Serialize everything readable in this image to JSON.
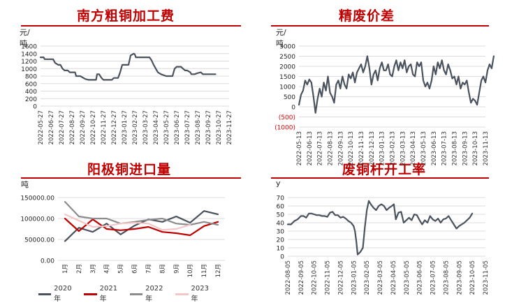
{
  "chart_data": [
    {
      "type": "line",
      "title": "南方粗铜加工费",
      "unit": "元/吨",
      "ylim": [
        0,
        1600
      ],
      "yticks": [
        "0",
        "200",
        "400",
        "600",
        "800",
        "1000",
        "1200",
        "1400",
        "1600"
      ],
      "xticks": [
        "2022-05-27",
        "2022-06-27",
        "2022-07-27",
        "2022-08-27",
        "2022-09-27",
        "2022-10-27",
        "2022-11-27",
        "2022-12-27",
        "2023-01-27",
        "2023-02-27",
        "2023-03-27",
        "2023-04-27",
        "2023-05-27",
        "2023-06-27",
        "2023-07-27",
        "2023-08-27",
        "2023-09-27",
        "2023-10-27",
        "2023-11-27"
      ],
      "grid": true,
      "color": "#4a525e",
      "series": [
        {
          "values": [
            [
              0,
              1300
            ],
            [
              0.3,
              1300
            ],
            [
              0.4,
              1250
            ],
            [
              1,
              1250
            ],
            [
              1.2,
              1250
            ],
            [
              1.4,
              1150
            ],
            [
              1.7,
              1100
            ],
            [
              1.9,
              1100
            ],
            [
              2.1,
              1000
            ],
            [
              2.3,
              950
            ],
            [
              2.6,
              950
            ],
            [
              2.8,
              900
            ],
            [
              3.3,
              900
            ],
            [
              3.4,
              800
            ],
            [
              3.8,
              800
            ],
            [
              4.1,
              750
            ],
            [
              4.3,
              720
            ],
            [
              4.6,
              700
            ],
            [
              5.3,
              700
            ],
            [
              5.4,
              850
            ],
            [
              5.6,
              850
            ],
            [
              5.8,
              760
            ],
            [
              6,
              700
            ],
            [
              6.8,
              700
            ],
            [
              7,
              750
            ],
            [
              7.4,
              750
            ],
            [
              7.6,
              900
            ],
            [
              7.8,
              1100
            ],
            [
              8.4,
              1100
            ],
            [
              8.6,
              1350
            ],
            [
              8.9,
              1400
            ],
            [
              9,
              1380
            ],
            [
              9.1,
              1300
            ],
            [
              10,
              1300
            ],
            [
              10.4,
              1300
            ],
            [
              10.6,
              1220
            ],
            [
              10.8,
              1100
            ],
            [
              11,
              1000
            ],
            [
              11.2,
              900
            ],
            [
              11.5,
              850
            ],
            [
              12,
              800
            ],
            [
              12.6,
              800
            ],
            [
              12.8,
              1000
            ],
            [
              13,
              1050
            ],
            [
              13.4,
              1050
            ],
            [
              13.6,
              1000
            ],
            [
              13.8,
              950
            ],
            [
              14,
              950
            ],
            [
              14.3,
              900
            ],
            [
              14.4,
              850
            ],
            [
              14.7,
              850
            ],
            [
              15,
              880
            ],
            [
              15.3,
              900
            ],
            [
              15.5,
              850
            ],
            [
              16,
              850
            ],
            [
              16.5,
              850
            ],
            [
              16.7,
              850
            ]
          ]
        }
      ]
    },
    {
      "type": "line",
      "title": "精废价差",
      "unit": "元/吨",
      "ylim": [
        -1000,
        3000
      ],
      "yticks": [
        "(1000)",
        "(500)",
        "0",
        "500",
        "1000",
        "1500",
        "2000",
        "2500",
        "3000"
      ],
      "negative_tick_color": "#e00000",
      "xticks": [
        "2022-05-13",
        "2022-06-13",
        "2022-07-13",
        "2022-08-13",
        "2022-09-13",
        "2022-10-13",
        "2022-11-13",
        "2022-12-13",
        "2023-01-13",
        "2023-02-13",
        "2023-03-13",
        "2023-04-13",
        "2023-05-13",
        "2023-06-13",
        "2023-07-13",
        "2023-08-13",
        "2023-09-13",
        "2023-10-13",
        "2023-11-13"
      ],
      "grid": true,
      "color": "#4a525e",
      "series": [
        {
          "values": [
            [
              0,
              100
            ],
            [
              0.2,
              600
            ],
            [
              0.4,
              800
            ],
            [
              0.6,
              1300
            ],
            [
              0.8,
              1100
            ],
            [
              1,
              1350
            ],
            [
              1.2,
              1200
            ],
            [
              1.4,
              500
            ],
            [
              1.6,
              -300
            ],
            [
              1.8,
              400
            ],
            [
              2,
              900
            ],
            [
              2.2,
              500
            ],
            [
              2.4,
              1200
            ],
            [
              2.6,
              800
            ],
            [
              2.8,
              1500
            ],
            [
              3,
              700
            ],
            [
              3.2,
              500
            ],
            [
              3.4,
              200
            ],
            [
              3.6,
              1100
            ],
            [
              3.8,
              1300
            ],
            [
              4,
              900
            ],
            [
              4.2,
              1500
            ],
            [
              4.4,
              1100
            ],
            [
              4.6,
              900
            ],
            [
              4.8,
              1600
            ],
            [
              5,
              1400
            ],
            [
              5.2,
              1700
            ],
            [
              5.4,
              1200
            ],
            [
              5.6,
              1700
            ],
            [
              5.8,
              1900
            ],
            [
              6,
              2100
            ],
            [
              6.2,
              1700
            ],
            [
              6.4,
              2000
            ],
            [
              6.6,
              2500
            ],
            [
              6.8,
              1900
            ],
            [
              7,
              1100
            ],
            [
              7.2,
              1600
            ],
            [
              7.4,
              1800
            ],
            [
              7.6,
              1300
            ],
            [
              7.8,
              1900
            ],
            [
              8,
              2200
            ],
            [
              8.2,
              1800
            ],
            [
              8.4,
              1800
            ],
            [
              8.6,
              2100
            ],
            [
              8.8,
              1600
            ],
            [
              9,
              1500
            ],
            [
              9.2,
              2000
            ],
            [
              9.4,
              2300
            ],
            [
              9.6,
              1800
            ],
            [
              9.8,
              2200
            ],
            [
              10,
              1900
            ],
            [
              10.2,
              2300
            ],
            [
              10.4,
              1700
            ],
            [
              10.6,
              2000
            ],
            [
              10.8,
              2100
            ],
            [
              11,
              1600
            ],
            [
              11.2,
              1500
            ],
            [
              11.4,
              2200
            ],
            [
              11.6,
              2000
            ],
            [
              11.8,
              2200
            ],
            [
              12,
              1300
            ],
            [
              12.2,
              1000
            ],
            [
              12.4,
              1200
            ],
            [
              12.6,
              900
            ],
            [
              12.8,
              1300
            ],
            [
              13,
              2000
            ],
            [
              13.2,
              1600
            ],
            [
              13.4,
              2200
            ],
            [
              13.6,
              1900
            ],
            [
              13.8,
              2300
            ],
            [
              14,
              1800
            ],
            [
              14.2,
              1600
            ],
            [
              14.4,
              2100
            ],
            [
              14.6,
              1800
            ],
            [
              14.8,
              1400
            ],
            [
              15,
              1500
            ],
            [
              15.2,
              1100
            ],
            [
              15.4,
              1500
            ],
            [
              15.6,
              900
            ],
            [
              15.8,
              1200
            ],
            [
              16,
              1100
            ],
            [
              16.2,
              1300
            ],
            [
              16.4,
              700
            ],
            [
              16.6,
              200
            ],
            [
              16.8,
              400
            ],
            [
              17,
              300
            ],
            [
              17.2,
              100
            ],
            [
              17.4,
              700
            ],
            [
              17.6,
              1300
            ],
            [
              17.8,
              1500
            ],
            [
              18,
              1200
            ],
            [
              18.2,
              1800
            ],
            [
              18.4,
              2100
            ],
            [
              18.6,
              1900
            ],
            [
              18.8,
              2500
            ]
          ]
        }
      ]
    },
    {
      "type": "line",
      "title": "阳极铜进口量",
      "unit": "吨",
      "ylim": [
        0,
        150000
      ],
      "yticks": [
        "0.00",
        "50000.00",
        "100000.00",
        "150000.00"
      ],
      "categories": [
        "1月",
        "2月",
        "3月",
        "4月",
        "5月",
        "6月",
        "7月",
        "8月",
        "9月",
        "10月",
        "11月",
        "12月"
      ],
      "grid": true,
      "legend_position": "bottom",
      "series": [
        {
          "name": "2020年",
          "color": "#4a525e",
          "values": [
            46000,
            78000,
            68000,
            88000,
            62000,
            83000,
            98000,
            92000,
            105000,
            90000,
            118000,
            110000
          ]
        },
        {
          "name": "2021年",
          "color": "#c00000",
          "values": [
            100000,
            70000,
            98000,
            75000,
            72000,
            75000,
            80000,
            68000,
            65000,
            60000,
            82000,
            92000
          ]
        },
        {
          "name": "2022年",
          "color": "#8c8c8c",
          "values": [
            140000,
            105000,
            100000,
            100000,
            88000,
            92000,
            97000,
            100000,
            88000,
            85000,
            92000,
            85000
          ]
        },
        {
          "name": "2023年",
          "color": "#f4c6c6",
          "values": [
            110000,
            95000,
            80000,
            82000,
            88000,
            90000,
            88000,
            73000,
            75000,
            85000,
            null,
            null
          ]
        }
      ]
    },
    {
      "type": "line",
      "title": "废铜杆开工率",
      "unit": "y",
      "ylim": [
        0,
        70
      ],
      "yticks": [
        "0",
        "10",
        "20",
        "30",
        "40",
        "50",
        "60",
        "70"
      ],
      "xticks": [
        "2022-08-05",
        "2022-09-05",
        "2022-10-05",
        "2022-11-05",
        "2022-12-05",
        "2023-01-05",
        "2023-02-05",
        "2023-03-05",
        "2023-04-05",
        "2023-05-05",
        "2023-06-05",
        "2023-07-05",
        "2023-08-05",
        "2023-09-05",
        "2023-10-05",
        "2023-11-05"
      ],
      "grid": true,
      "color": "#4a525e",
      "series": [
        {
          "values": [
            [
              0,
              38
            ],
            [
              0.25,
              38
            ],
            [
              0.5,
              42
            ],
            [
              0.75,
              44
            ],
            [
              1,
              48
            ],
            [
              1.2,
              48
            ],
            [
              1.4,
              46
            ],
            [
              1.6,
              51
            ],
            [
              1.8,
              51
            ],
            [
              2,
              50
            ],
            [
              2.2,
              49
            ],
            [
              2.4,
              49
            ],
            [
              2.6,
              48
            ],
            [
              2.8,
              48
            ],
            [
              3,
              47
            ],
            [
              3.2,
              52
            ],
            [
              3.4,
              53
            ],
            [
              3.6,
              49
            ],
            [
              3.8,
              49
            ],
            [
              4,
              46
            ],
            [
              4.2,
              47
            ],
            [
              4.4,
              45
            ],
            [
              4.6,
              42
            ],
            [
              4.8,
              40
            ],
            [
              5,
              36
            ],
            [
              5.1,
              30
            ],
            [
              5.2,
              18
            ],
            [
              5.3,
              2
            ],
            [
              5.5,
              5
            ],
            [
              5.7,
              10
            ],
            [
              5.85,
              35
            ],
            [
              6,
              55
            ],
            [
              6.15,
              66
            ],
            [
              6.3,
              62
            ],
            [
              6.5,
              58
            ],
            [
              6.7,
              55
            ],
            [
              6.9,
              60
            ],
            [
              7.1,
              62
            ],
            [
              7.3,
              60
            ],
            [
              7.5,
              55
            ],
            [
              7.7,
              58
            ],
            [
              7.9,
              60
            ],
            [
              8.05,
              62
            ],
            [
              8.2,
              44
            ],
            [
              8.4,
              52
            ],
            [
              8.6,
              53
            ],
            [
              8.8,
              40
            ],
            [
              9,
              43
            ],
            [
              9.2,
              46
            ],
            [
              9.4,
              43
            ],
            [
              9.6,
              50
            ],
            [
              9.8,
              49
            ],
            [
              10,
              43
            ],
            [
              10.2,
              38
            ],
            [
              10.4,
              43
            ],
            [
              10.6,
              40
            ],
            [
              10.8,
              48
            ],
            [
              11,
              44
            ],
            [
              11.2,
              42
            ],
            [
              11.4,
              45
            ],
            [
              11.6,
              40
            ],
            [
              11.8,
              44
            ],
            [
              12,
              45
            ],
            [
              12.2,
              48
            ],
            [
              12.4,
              43
            ],
            [
              12.6,
              38
            ],
            [
              12.8,
              33
            ],
            [
              13,
              36
            ],
            [
              13.2,
              38
            ],
            [
              13.4,
              40
            ],
            [
              13.6,
              43
            ],
            [
              13.8,
              46
            ],
            [
              14,
              51
            ]
          ]
        }
      ]
    }
  ]
}
